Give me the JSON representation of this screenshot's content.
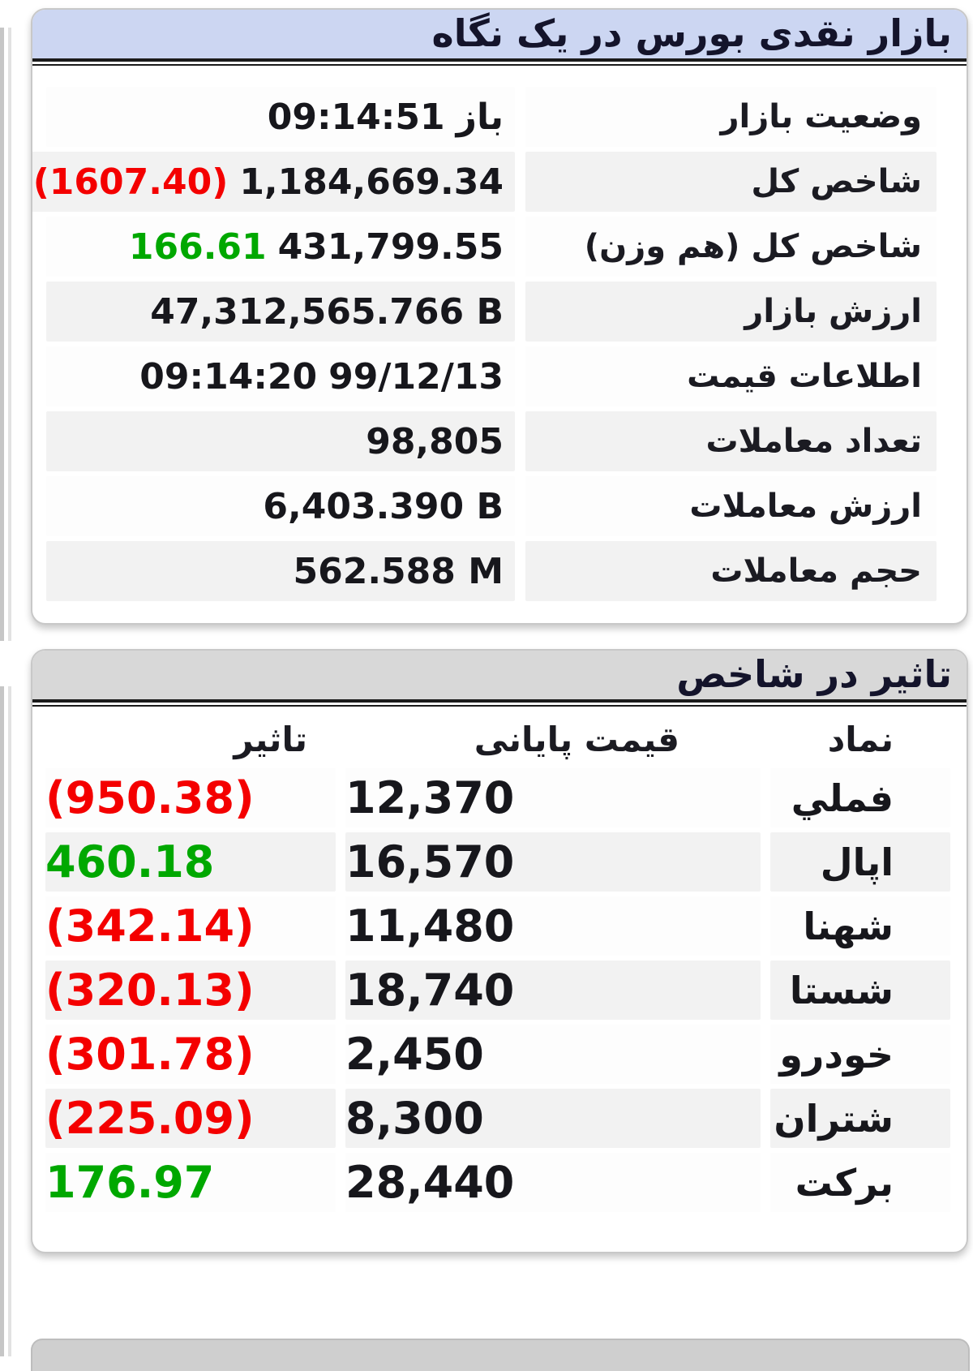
{
  "colors": {
    "red": "#f40000",
    "green": "#00a800",
    "panel1_header_bg": "#ccd6f2",
    "panel2_header_bg": "#d8d8d8"
  },
  "overview": {
    "title": "بازار نقدی بورس در یک نگاه",
    "rows": [
      {
        "label": "وضعیت بازار",
        "parts": [
          {
            "text": "باز"
          },
          {
            "text": "09:14:51"
          }
        ]
      },
      {
        "label": "شاخص کل",
        "parts": [
          {
            "text": "1,184,669.34"
          },
          {
            "text": "(1607.40)",
            "color": "negative"
          }
        ]
      },
      {
        "label": "شاخص کل (هم وزن)",
        "parts": [
          {
            "text": "431,799.55"
          },
          {
            "text": "166.61",
            "color": "positive"
          }
        ]
      },
      {
        "label": "ارزش بازار",
        "parts": [
          {
            "text": "47,312,565.766 B"
          }
        ]
      },
      {
        "label": "اطلاعات قیمت",
        "parts": [
          {
            "text": "99/12/13"
          },
          {
            "text": "09:14:20"
          }
        ]
      },
      {
        "label": "تعداد معاملات",
        "parts": [
          {
            "text": "98,805"
          }
        ]
      },
      {
        "label": "ارزش معاملات",
        "parts": [
          {
            "text": "6,403.390 B"
          }
        ]
      },
      {
        "label": "حجم معاملات",
        "parts": [
          {
            "text": "562.588 M"
          }
        ]
      }
    ]
  },
  "impact": {
    "title": "تاثیر در شاخص",
    "headers": {
      "symbol": "نماد",
      "close_price": "قیمت پایانی",
      "impact": "تاثیر"
    },
    "rows": [
      {
        "symbol": "فملي",
        "close_price": "12,370",
        "impact": "(950.38)",
        "direction": "negative"
      },
      {
        "symbol": "اپال",
        "close_price": "16,570",
        "impact": "460.18",
        "direction": "positive"
      },
      {
        "symbol": "شهنا",
        "close_price": "11,480",
        "impact": "(342.14)",
        "direction": "negative"
      },
      {
        "symbol": "شستا",
        "close_price": "18,740",
        "impact": "(320.13)",
        "direction": "negative"
      },
      {
        "symbol": "خودرو",
        "close_price": "2,450",
        "impact": "(301.78)",
        "direction": "negative"
      },
      {
        "symbol": "شتران",
        "close_price": "8,300",
        "impact": "(225.09)",
        "direction": "negative"
      },
      {
        "symbol": "برکت",
        "close_price": "28,440",
        "impact": "176.97",
        "direction": "positive"
      }
    ]
  }
}
